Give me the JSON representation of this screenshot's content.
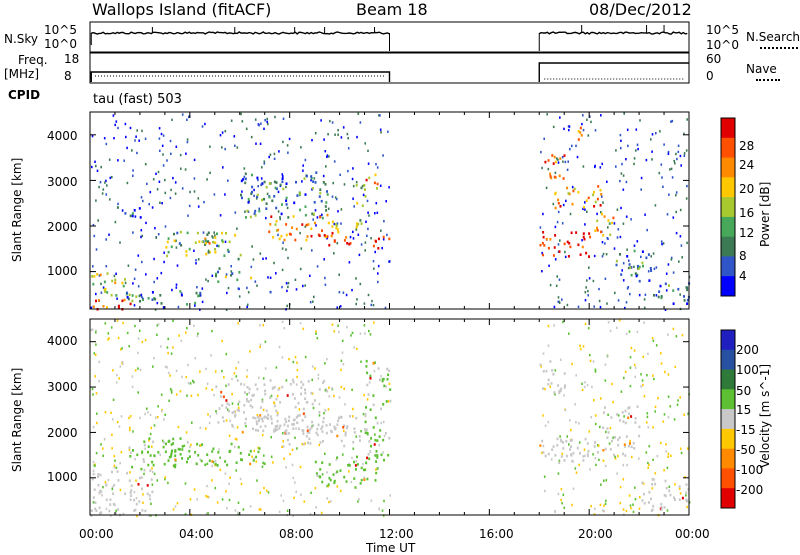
{
  "header": {
    "station": "Wallops Island (fitACF)",
    "beam": "Beam 18",
    "date": "08/Dec/2012"
  },
  "status_panels": {
    "nsky_label": "N.Sky",
    "nsearch_label": "N.Search",
    "noise_ticks": [
      "10^5",
      "10^0"
    ],
    "freq_label": "Freq.",
    "freq_unit": "[MHz]",
    "freq_ticks": [
      "18",
      "8"
    ],
    "nave_label": "Nave",
    "nave_ticks": [
      "60",
      "0"
    ],
    "cpid_label": "CPID",
    "cpid_value": "tau (fast) 503"
  },
  "chart_data": [
    {
      "type": "heatmap",
      "parameter": "power",
      "title": "",
      "xlabel": "Time UT",
      "ylabel": "Slant Range [km]",
      "xlim_hours": [
        0,
        24
      ],
      "ylim_km": [
        180,
        4500
      ],
      "x_tick_labels": [
        "00:00",
        "04:00",
        "08:00",
        "12:00",
        "16:00",
        "20:00",
        "00:00"
      ],
      "y_tick_labels": [
        "1000",
        "2000",
        "3000",
        "4000"
      ],
      "y_ticks": [
        1000,
        2000,
        3000,
        4000
      ],
      "data_gap_hours": [
        12.0,
        18.0
      ],
      "colorbar": {
        "label": "Power [dB]",
        "tick_labels": [
          "4",
          "8",
          "12",
          "16",
          "20",
          "24",
          "28"
        ],
        "colors": [
          "#0000ff",
          "#2f55c8",
          "#3b7a52",
          "#48a85a",
          "#a8c830",
          "#ffc800",
          "#ff8a00",
          "#ff5000",
          "#e00000"
        ]
      },
      "echo_regions": [
        {
          "t": [
            0.0,
            2.0
          ],
          "r": [
            180,
            420
          ],
          "level": 7
        },
        {
          "t": [
            0.0,
            1.5
          ],
          "r": [
            600,
            1000
          ],
          "level": 4
        },
        {
          "t": [
            0.5,
            4.5
          ],
          "r": [
            300,
            600
          ],
          "level": 2
        },
        {
          "t": [
            1.0,
            2.0
          ],
          "r": [
            2200,
            2500
          ],
          "level": 1
        },
        {
          "t": [
            3.0,
            6.0
          ],
          "r": [
            1300,
            1900
          ],
          "level": 3
        },
        {
          "t": [
            4.0,
            5.0
          ],
          "r": [
            1550,
            1800
          ],
          "level": 5
        },
        {
          "t": [
            5.0,
            6.5
          ],
          "r": [
            800,
            1100
          ],
          "level": 3
        },
        {
          "t": [
            6.0,
            9.5
          ],
          "r": [
            2200,
            3200
          ],
          "level": 2
        },
        {
          "t": [
            7.0,
            10.0
          ],
          "r": [
            1700,
            2300
          ],
          "level": 6
        },
        {
          "t": [
            9.0,
            10.5
          ],
          "r": [
            1600,
            1850
          ],
          "level": 8
        },
        {
          "t": [
            10.5,
            11.0
          ],
          "r": [
            2000,
            3000
          ],
          "level": 4
        },
        {
          "t": [
            11.3,
            12.0
          ],
          "r": [
            1400,
            1800
          ],
          "level": 8
        },
        {
          "t": [
            11.0,
            11.5
          ],
          "r": [
            2800,
            3300
          ],
          "level": 6
        },
        {
          "t": [
            18.0,
            19.0
          ],
          "r": [
            3000,
            3600
          ],
          "level": 7
        },
        {
          "t": [
            18.0,
            20.0
          ],
          "r": [
            1300,
            1900
          ],
          "level": 8
        },
        {
          "t": [
            18.5,
            20.5
          ],
          "r": [
            2400,
            2900
          ],
          "level": 6
        },
        {
          "t": [
            19.5,
            20.0
          ],
          "r": [
            3800,
            4200
          ],
          "level": 6
        },
        {
          "t": [
            20.0,
            21.0
          ],
          "r": [
            1800,
            2300
          ],
          "level": 5
        },
        {
          "t": [
            21.0,
            22.5
          ],
          "r": [
            800,
            1500
          ],
          "level": 2
        },
        {
          "t": [
            22.5,
            24.0
          ],
          "r": [
            300,
            800
          ],
          "level": 2
        }
      ]
    },
    {
      "type": "heatmap",
      "parameter": "velocity",
      "title": "",
      "xlabel": "Time UT",
      "ylabel": "Slant Range [km]",
      "xlim_hours": [
        0,
        24
      ],
      "ylim_km": [
        180,
        4500
      ],
      "x_tick_labels": [
        "00:00",
        "04:00",
        "08:00",
        "12:00",
        "16:00",
        "20:00",
        "00:00"
      ],
      "y_tick_labels": [
        "1000",
        "2000",
        "3000",
        "4000"
      ],
      "y_ticks": [
        1000,
        2000,
        3000,
        4000
      ],
      "data_gap_hours": [
        12.0,
        18.0
      ],
      "colorbar": {
        "label": "Velocity [m s^-1]",
        "tick_labels": [
          "200",
          "100",
          "50",
          "15",
          "-15",
          "-50",
          "-100",
          "-200"
        ],
        "colors": [
          "#2020c0",
          "#2850a0",
          "#2f7a3a",
          "#5cc032",
          "#c8c8c8",
          "#ffc800",
          "#ff8a00",
          "#ff5000",
          "#e00000"
        ]
      },
      "echo_regions": [
        {
          "t": [
            0.0,
            2.5
          ],
          "r": [
            180,
            1200
          ],
          "vel": 0
        },
        {
          "t": [
            1.5,
            4.0
          ],
          "r": [
            1200,
            1900
          ],
          "vel": 20
        },
        {
          "t": [
            3.0,
            7.0
          ],
          "r": [
            1300,
            1800
          ],
          "vel": 30
        },
        {
          "t": [
            5.0,
            9.5
          ],
          "r": [
            2000,
            3200
          ],
          "vel": 0
        },
        {
          "t": [
            7.0,
            11.0
          ],
          "r": [
            1700,
            2400
          ],
          "vel": 0
        },
        {
          "t": [
            9.0,
            11.5
          ],
          "r": [
            800,
            1500
          ],
          "vel": 25
        },
        {
          "t": [
            11.0,
            12.0
          ],
          "r": [
            1400,
            3600
          ],
          "vel": 20
        },
        {
          "t": [
            18.0,
            20.5
          ],
          "r": [
            1300,
            1900
          ],
          "vel": 0
        },
        {
          "t": [
            18.0,
            19.0
          ],
          "r": [
            2800,
            3600
          ],
          "vel": 0
        },
        {
          "t": [
            20.5,
            22.0
          ],
          "r": [
            1500,
            2600
          ],
          "vel": 0
        },
        {
          "t": [
            22.0,
            24.0
          ],
          "r": [
            300,
            1000
          ],
          "vel": 0
        }
      ]
    }
  ]
}
